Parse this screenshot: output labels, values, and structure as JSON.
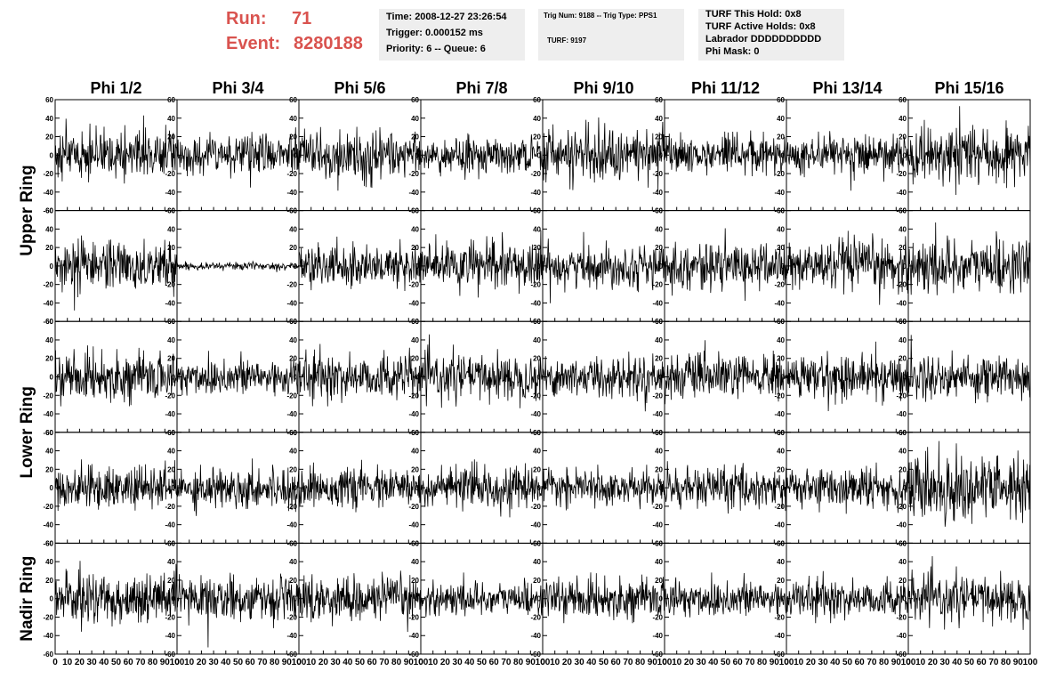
{
  "header": {
    "run_label": "Run:",
    "run_value": "71",
    "event_label": "Event:",
    "event_value": "8280188",
    "time_text": "Time: 2008-12-27 23:26:54",
    "trigger_text": "Trigger: 0.000152 ms",
    "priority_text": "Priority: 6 -- Queue: 6",
    "trig_num_text": "Trig Num: 9188 -- Trig Type: PPS1",
    "turf_text": "TURF: 9197",
    "turf_hold_text": "TURF This Hold: 0x8",
    "turf_active_text": "TURF Active Holds: 0x8",
    "labrador_text": "Labrador DDDDDDDDDD",
    "phi_mask_text": "Phi Mask: 0"
  },
  "colors": {
    "run_event": "#d9534f",
    "info_bg": "#eeeeee",
    "trace": "#000000"
  },
  "chart_data": {
    "type": "line",
    "columns": [
      "Phi 1/2",
      "Phi 3/4",
      "Phi 5/6",
      "Phi 7/8",
      "Phi 9/10",
      "Phi 11/12",
      "Phi 13/14",
      "Phi 15/16"
    ],
    "ring_labels": [
      "Upper Ring",
      "Lower Ring",
      "Nadir Ring"
    ],
    "rows": 5,
    "xlim": [
      0,
      100
    ],
    "ylim": [
      -60,
      60
    ],
    "x_ticks": [
      0,
      10,
      20,
      30,
      40,
      50,
      60,
      70,
      80,
      90,
      100
    ],
    "x_tick_labels": [
      "0",
      "10",
      "20",
      "30",
      "40",
      "50",
      "60",
      "70",
      "80",
      "90",
      "100"
    ],
    "y_ticks": [
      60,
      40,
      20,
      0,
      -20,
      -40,
      -60
    ],
    "y_tick_labels": [
      "60",
      "40",
      "20",
      "0",
      "-20",
      "-40",
      "-60"
    ],
    "samples_per_trace": 260,
    "trace_rms": [
      [
        14,
        10,
        13,
        9,
        15,
        10,
        10,
        15
      ],
      [
        13,
        2,
        12,
        13,
        11,
        12,
        14,
        15
      ],
      [
        12,
        11,
        12,
        12,
        11,
        12,
        12,
        12
      ],
      [
        11,
        11,
        10,
        11,
        9,
        11,
        11,
        18
      ],
      [
        14,
        11,
        12,
        9,
        10,
        11,
        10,
        12
      ]
    ]
  }
}
